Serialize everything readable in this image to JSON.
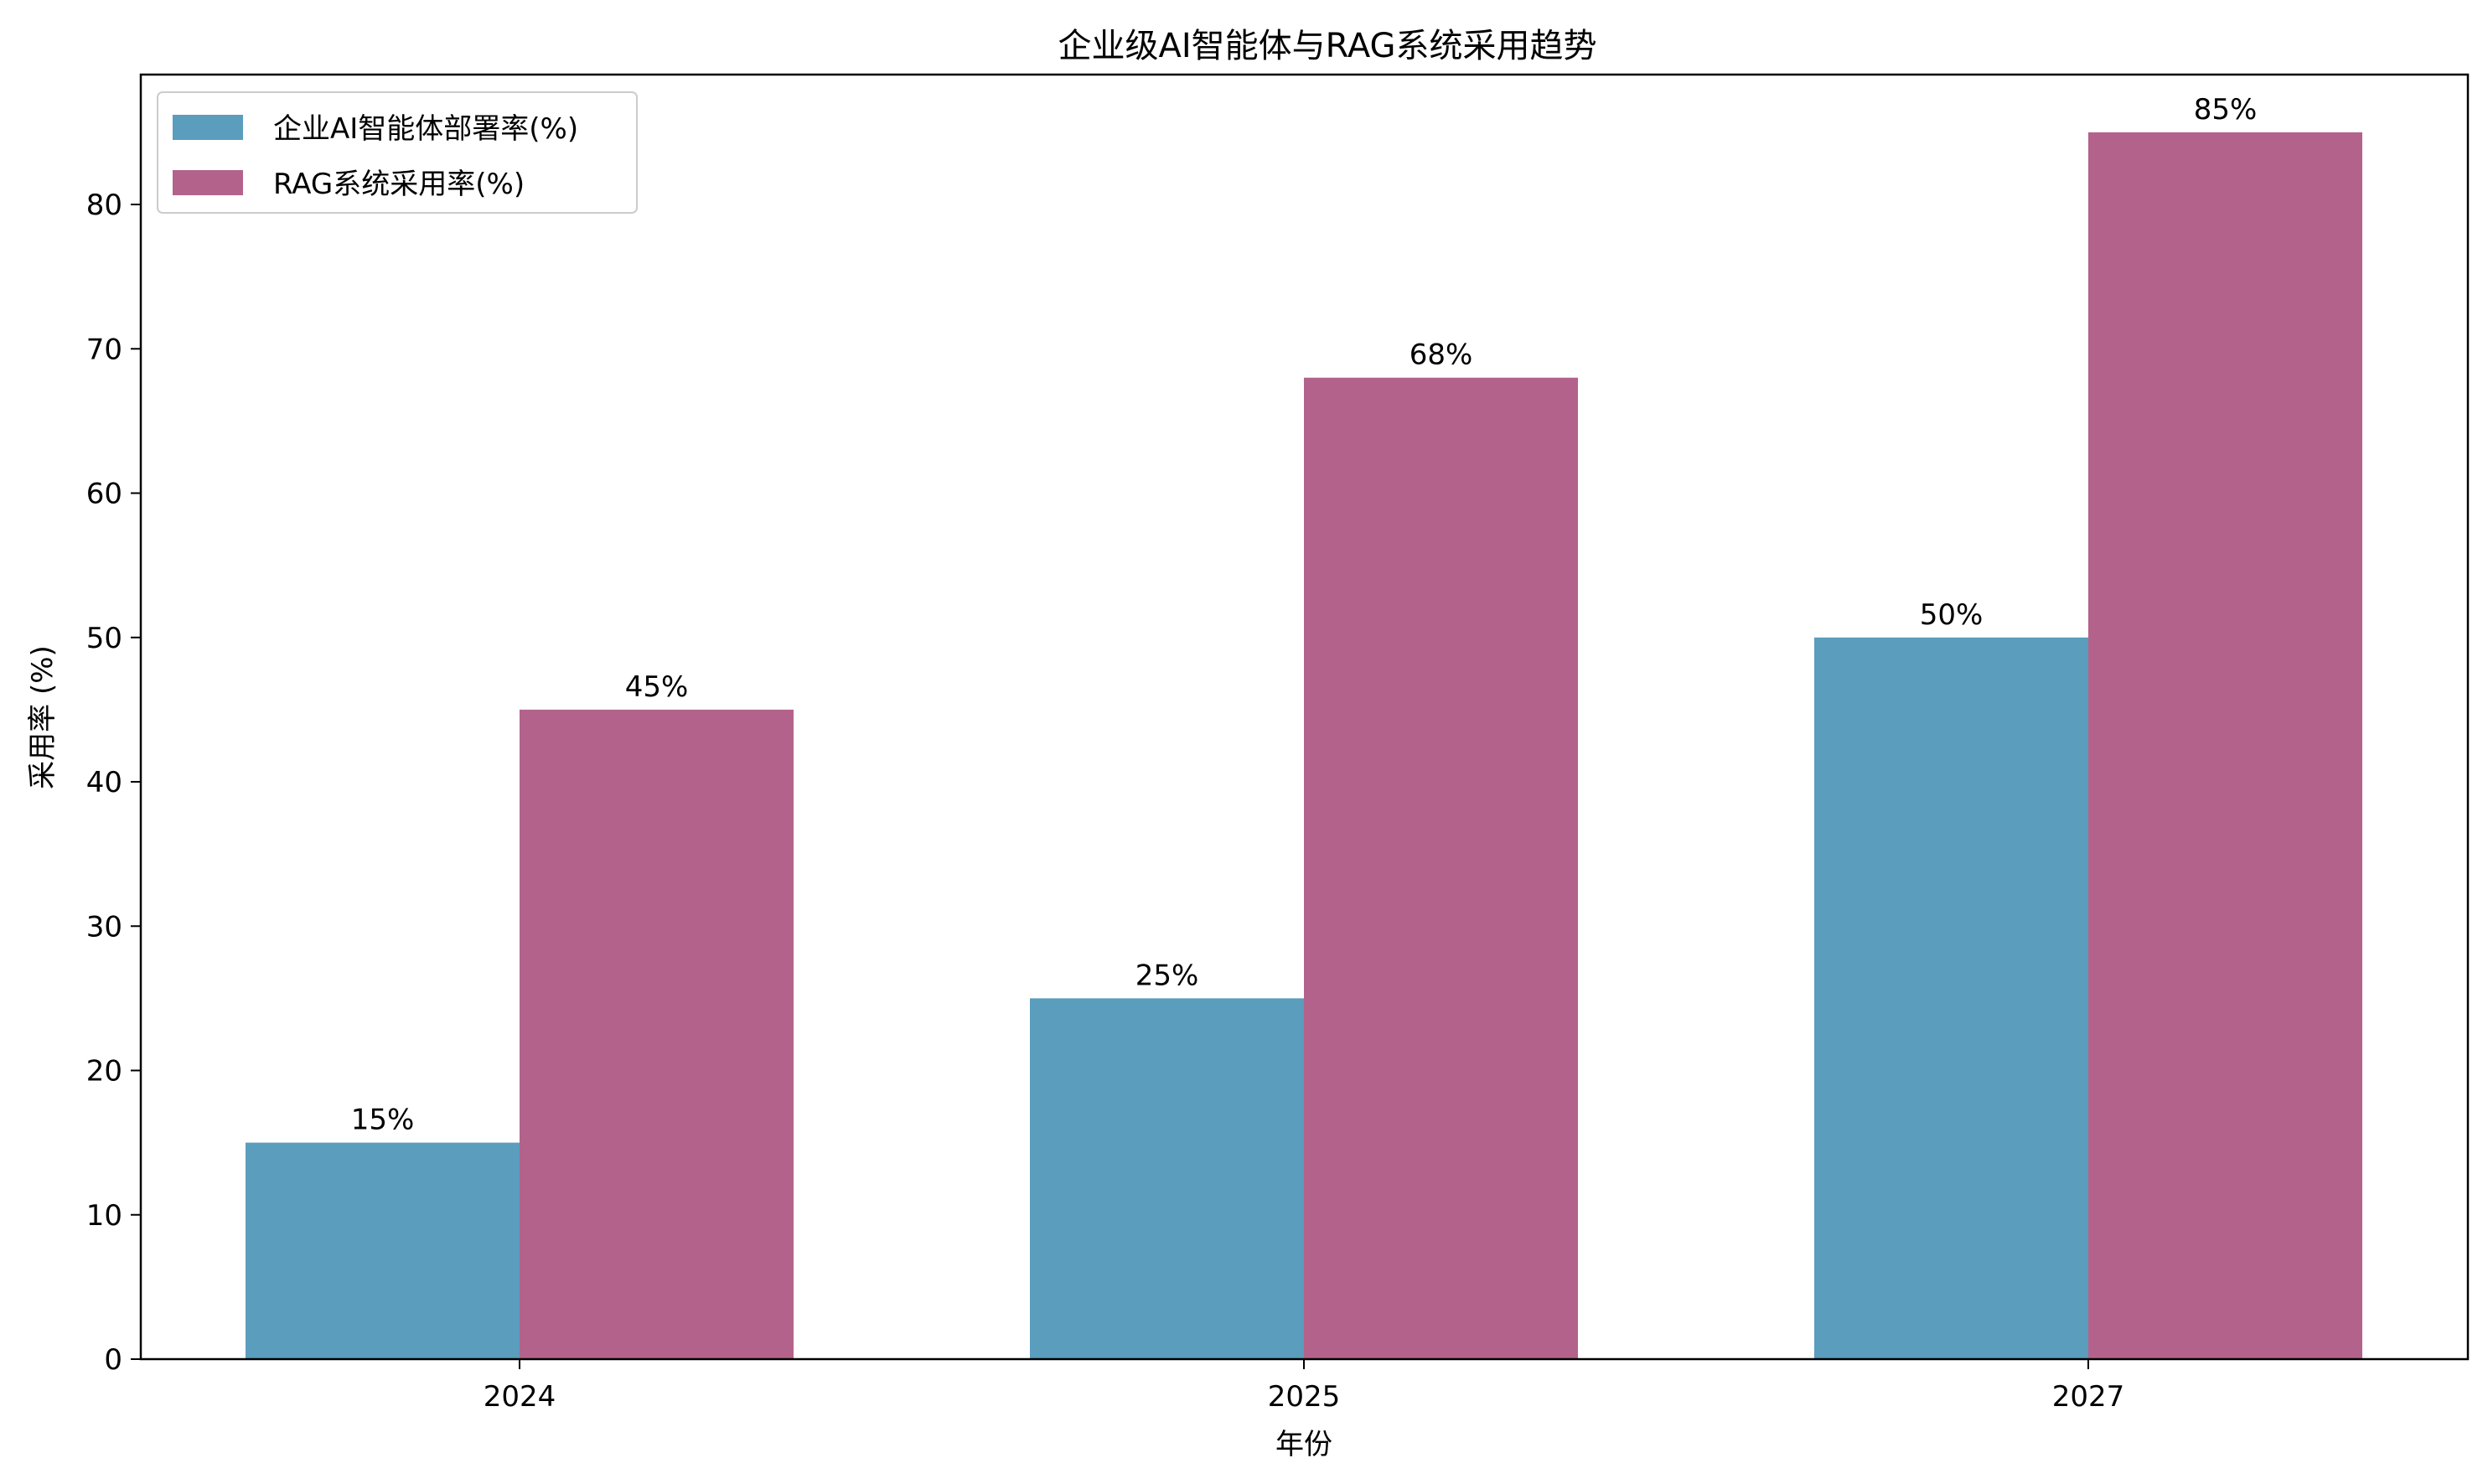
{
  "chart_data": {
    "type": "bar",
    "title": "企业级AI智能体与RAG系统采用趋势",
    "xlabel": "年份",
    "ylabel": "采用率 (%)",
    "categories": [
      "2024",
      "2025",
      "2027"
    ],
    "ylim": [
      0,
      89
    ],
    "yticks": [
      0,
      10,
      20,
      30,
      40,
      50,
      60,
      70,
      80
    ],
    "grid": false,
    "legend_position": "top-left",
    "series": [
      {
        "name": "企业AI智能体部署率(%)",
        "values": [
          15,
          25,
          50
        ],
        "labels": [
          "15%",
          "25%",
          "50%"
        ],
        "color": "#5a9dbd"
      },
      {
        "name": "RAG系统采用率(%)",
        "values": [
          45,
          68,
          85
        ],
        "labels": [
          "45%",
          "68%",
          "85%"
        ],
        "color": "#b3638b"
      }
    ]
  }
}
